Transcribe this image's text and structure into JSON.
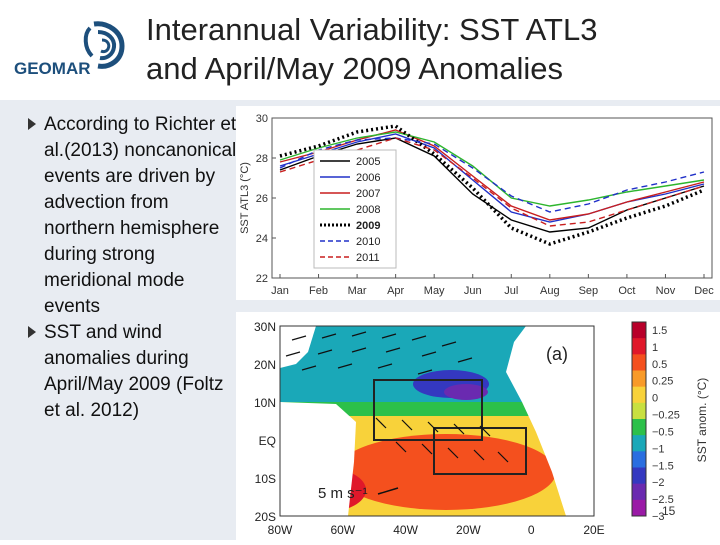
{
  "header": {
    "logo_text": "GEOMAR",
    "title_line1": "Interannual Variability: SST ATL3",
    "title_line2": "and April/May 2009 Anomalies"
  },
  "bullets": [
    "According to Richter et al.(2013) noncanonical events are driven by advection from northern hemisphere during strong meridional mode events",
    "SST and wind anomalies during April/May 2009 (Foltz et al. 2012)"
  ],
  "page_number": "15",
  "colors": {
    "background": "#e8ecf2",
    "title": "#222222",
    "logo": "#1d4f7c"
  },
  "chart_data": [
    {
      "type": "line",
      "ylabel": "SST ATL3 (°C)",
      "ylim": [
        22,
        30
      ],
      "yticks": [
        "30",
        "28",
        "26",
        "24",
        "22"
      ],
      "categories": [
        "Jan",
        "Feb",
        "Mar",
        "Apr",
        "May",
        "Jun",
        "Jul",
        "Aug",
        "Sep",
        "Oct",
        "Nov",
        "Dec"
      ],
      "legend_position": "top-left inside plot",
      "series": [
        {
          "name": "2005",
          "color": "#000000",
          "dash": "solid",
          "values": [
            27.4,
            28.1,
            28.7,
            29.0,
            28.1,
            26.2,
            24.9,
            24.3,
            24.5,
            25.4,
            26.0,
            26.6
          ]
        },
        {
          "name": "2006",
          "color": "#2030c8",
          "dash": "solid",
          "values": [
            27.6,
            28.2,
            28.8,
            29.2,
            28.5,
            26.9,
            25.3,
            24.8,
            25.2,
            25.8,
            26.2,
            26.7
          ]
        },
        {
          "name": "2007",
          "color": "#c81e1e",
          "dash": "solid",
          "values": [
            27.8,
            28.3,
            28.9,
            29.4,
            28.6,
            27.1,
            25.6,
            24.9,
            25.2,
            25.8,
            26.3,
            26.8
          ]
        },
        {
          "name": "2008",
          "color": "#2db52d",
          "dash": "solid",
          "values": [
            27.9,
            28.5,
            29.0,
            29.3,
            28.8,
            27.6,
            26.0,
            25.6,
            25.9,
            26.3,
            26.6,
            26.9
          ]
        },
        {
          "name": "2009",
          "color": "#000000",
          "dash": "dotted",
          "values": [
            28.1,
            28.6,
            29.3,
            29.6,
            28.2,
            26.5,
            24.5,
            23.7,
            24.3,
            25.0,
            25.6,
            26.4
          ]
        },
        {
          "name": "2010",
          "color": "#2030c8",
          "dash": "dashed",
          "values": [
            27.5,
            28.4,
            28.9,
            29.0,
            28.7,
            27.5,
            26.1,
            25.3,
            25.7,
            26.4,
            26.8,
            27.3
          ]
        },
        {
          "name": "2011",
          "color": "#c81e1e",
          "dash": "dashed",
          "values": [
            27.3,
            27.9,
            28.4,
            29.0,
            28.4,
            27.0,
            25.5,
            24.6,
            24.8,
            25.4,
            26.0,
            26.6
          ]
        }
      ]
    },
    {
      "type": "heatmap",
      "panel_label": "(a)",
      "x_tick_labels": [
        "80W",
        "60W",
        "40W",
        "20W",
        "0",
        "20E"
      ],
      "y_tick_labels": [
        "30N",
        "20N",
        "10N",
        "EQ",
        "10S",
        "20S"
      ],
      "scale_label": "5 m s⁻¹",
      "colorbar_label": "SST anom. (°C)",
      "colorbar_ticks": [
        "1.5",
        "1",
        "0.5",
        "0.25",
        "0",
        "−0.25",
        "−0.5",
        "−1",
        "−1.5",
        "−2",
        "−2.5",
        "−3"
      ],
      "colorbar_colors": [
        "#b8002a",
        "#e0182a",
        "#f4501e",
        "#f89a28",
        "#f8d23a",
        "#c8e040",
        "#2cc04a",
        "#1aa8b8",
        "#2a6ee0",
        "#3438c0",
        "#6a2ab0",
        "#9a1aa6"
      ]
    }
  ]
}
